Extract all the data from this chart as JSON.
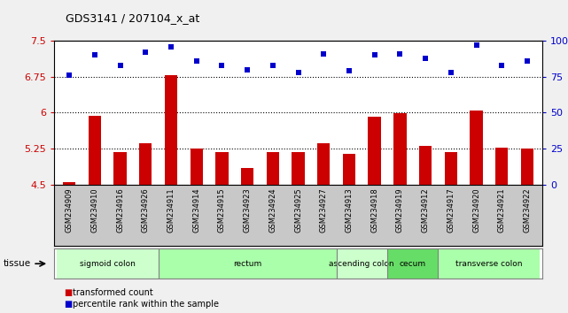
{
  "title": "GDS3141 / 207104_x_at",
  "samples": [
    "GSM234909",
    "GSM234910",
    "GSM234916",
    "GSM234926",
    "GSM234911",
    "GSM234914",
    "GSM234915",
    "GSM234923",
    "GSM234924",
    "GSM234925",
    "GSM234927",
    "GSM234913",
    "GSM234918",
    "GSM234919",
    "GSM234912",
    "GSM234917",
    "GSM234920",
    "GSM234921",
    "GSM234922"
  ],
  "transformed_count": [
    4.55,
    5.93,
    5.17,
    5.37,
    6.78,
    5.25,
    5.17,
    4.85,
    5.17,
    5.17,
    5.37,
    5.15,
    5.92,
    5.99,
    5.3,
    5.17,
    6.05,
    5.27,
    5.26
  ],
  "percentile_rank": [
    76,
    90,
    83,
    92,
    96,
    86,
    83,
    80,
    83,
    78,
    91,
    79,
    90,
    91,
    88,
    78,
    97,
    83,
    86
  ],
  "bar_color": "#cc0000",
  "dot_color": "#0000cc",
  "ylim_left": [
    4.5,
    7.5
  ],
  "ylim_right": [
    0,
    100
  ],
  "yticks_left": [
    4.5,
    5.25,
    6.0,
    6.75,
    7.5
  ],
  "ytick_labels_left": [
    "4.5",
    "5.25",
    "6",
    "6.75",
    "7.5"
  ],
  "yticks_right": [
    0,
    25,
    50,
    75,
    100
  ],
  "ytick_labels_right": [
    "0",
    "25",
    "50",
    "75",
    "100%"
  ],
  "hlines": [
    5.25,
    6.0,
    6.75
  ],
  "tissue_groups": [
    {
      "label": "sigmoid colon",
      "start": 0,
      "end": 4,
      "color": "#ccffcc"
    },
    {
      "label": "rectum",
      "start": 4,
      "end": 11,
      "color": "#aaffaa"
    },
    {
      "label": "ascending colon",
      "start": 11,
      "end": 13,
      "color": "#ccffcc"
    },
    {
      "label": "cecum",
      "start": 13,
      "end": 15,
      "color": "#66dd66"
    },
    {
      "label": "transverse colon",
      "start": 15,
      "end": 19,
      "color": "#aaffaa"
    }
  ],
  "legend_red_label": "transformed count",
  "legend_blue_label": "percentile rank within the sample",
  "tissue_label": "tissue",
  "fig_bg": "#f0f0f0",
  "plot_bg": "#ffffff",
  "xtick_area_bg": "#c8c8c8"
}
